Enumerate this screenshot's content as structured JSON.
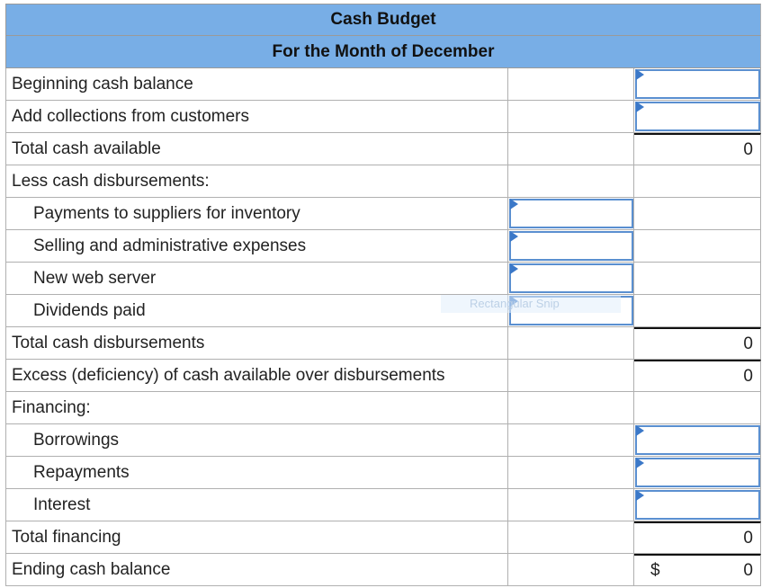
{
  "header": {
    "title": "Cash Budget",
    "subtitle": "For the Month of December"
  },
  "rows": [
    {
      "label": "Beginning cash balance",
      "input_right": true
    },
    {
      "label": "Add collections from customers",
      "input_right": true
    },
    {
      "label": "Total cash available",
      "value": 0
    },
    {
      "label": "Less cash disbursements:"
    },
    {
      "label": "Payments to suppliers for inventory",
      "indent": true,
      "input_mid": true
    },
    {
      "label": "Selling and administrative expenses",
      "indent": true,
      "input_mid": true
    },
    {
      "label": "New web server",
      "indent": true,
      "input_mid": true
    },
    {
      "label": "Dividends paid",
      "indent": true,
      "input_mid": true
    },
    {
      "label": "Total cash disbursements",
      "value": 0
    },
    {
      "label": "Excess (deficiency) of cash available over disbursements",
      "value": 0
    },
    {
      "label": "Financing:"
    },
    {
      "label": "Borrowings",
      "indent": true,
      "input_right": true
    },
    {
      "label": "Repayments",
      "indent": true,
      "input_right": true
    },
    {
      "label": "Interest",
      "indent": true,
      "input_right": true
    },
    {
      "label": "Total financing",
      "value": 0
    },
    {
      "label": "Ending cash balance",
      "currency": "$",
      "value": 0
    }
  ],
  "overlay_tooltip": "Rectangular Snip"
}
